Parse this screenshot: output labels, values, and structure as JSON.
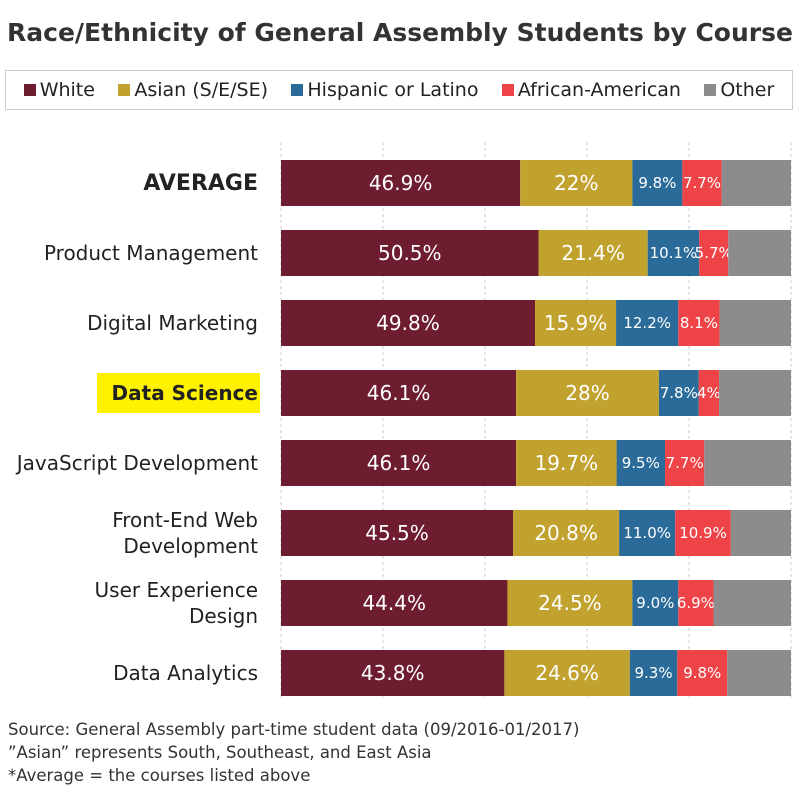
{
  "chart_data": {
    "type": "bar",
    "orientation": "horizontal",
    "stacked": true,
    "title": "Race/Ethnicity of General Assembly Students by Course",
    "categories": [
      "AVERAGE",
      "Product Management",
      "Digital Marketing",
      "Data Science",
      "JavaScript Development",
      "Front-End Web Development",
      "User Experience Design",
      "Data Analytics"
    ],
    "highlighted_category": "Data Science",
    "highlight_color": "#fff200",
    "xlim": [
      0,
      100
    ],
    "grid": true,
    "legend_position": "top",
    "series": [
      {
        "name": "White",
        "color": "#6e1c2f",
        "values": [
          46.9,
          50.5,
          49.8,
          46.1,
          46.1,
          45.5,
          44.4,
          43.8
        ],
        "labels": [
          "46.9%",
          "50.5%",
          "49.8%",
          "46.1%",
          "46.1%",
          "45.5%",
          "44.4%",
          "43.8%"
        ]
      },
      {
        "name": "Asian (S/E/SE)",
        "color": "#c2a22e",
        "values": [
          22,
          21.4,
          15.9,
          28,
          19.7,
          20.8,
          24.5,
          24.6
        ],
        "labels": [
          "22%",
          "21.4%",
          "15.9%",
          "28%",
          "19.7%",
          "20.8%",
          "24.5%",
          "24.6%"
        ]
      },
      {
        "name": "Hispanic or Latino",
        "color": "#2a6b9a",
        "values": [
          9.8,
          10.1,
          12.2,
          7.8,
          9.5,
          11.0,
          9.0,
          9.3
        ],
        "labels": [
          "9.8%",
          "10.1%",
          "12.2%",
          "7.8%",
          "9.5%",
          "11.0%",
          "9.0%",
          "9.3%"
        ]
      },
      {
        "name": "African-American",
        "color": "#ee4347",
        "values": [
          7.7,
          5.7,
          8.1,
          4,
          7.7,
          10.9,
          6.9,
          9.8
        ],
        "labels": [
          "7.7%",
          "5.7%",
          "8.1%",
          "4%",
          "7.7%",
          "10.9%",
          "6.9%",
          "9.8%"
        ]
      },
      {
        "name": "Other",
        "color": "#8c8c8c"
      }
    ]
  },
  "footnotes": [
    "Source: General Assembly part-time student data (09/2016-01/2017)",
    "”Asian” represents South, Southeast, and East Asia",
    "*Average = the courses listed above"
  ]
}
